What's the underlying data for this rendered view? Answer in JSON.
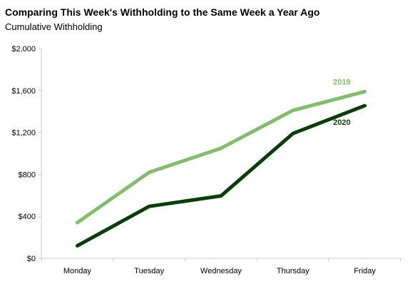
{
  "chart_data": {
    "type": "line",
    "title": "Comparing This Week's Withholding to the Same Week a Year Ago",
    "subtitle": "Cumulative Withholding",
    "categories": [
      "Monday",
      "Tuesday",
      "Wednesday",
      "Thursday",
      "Friday"
    ],
    "y_ticks": [
      "$0",
      "$400",
      "$800",
      "$1,200",
      "$1,600",
      "$2,000"
    ],
    "ylim": [
      0,
      2000
    ],
    "grid": false,
    "legend": "direct labels near line ends",
    "series": [
      {
        "name": "2019",
        "color": "#84bc6e",
        "values": [
          340,
          820,
          1050,
          1410,
          1590
        ]
      },
      {
        "name": "2020",
        "color": "#0b3d0b",
        "values": [
          120,
          495,
          595,
          1190,
          1455
        ]
      }
    ]
  }
}
